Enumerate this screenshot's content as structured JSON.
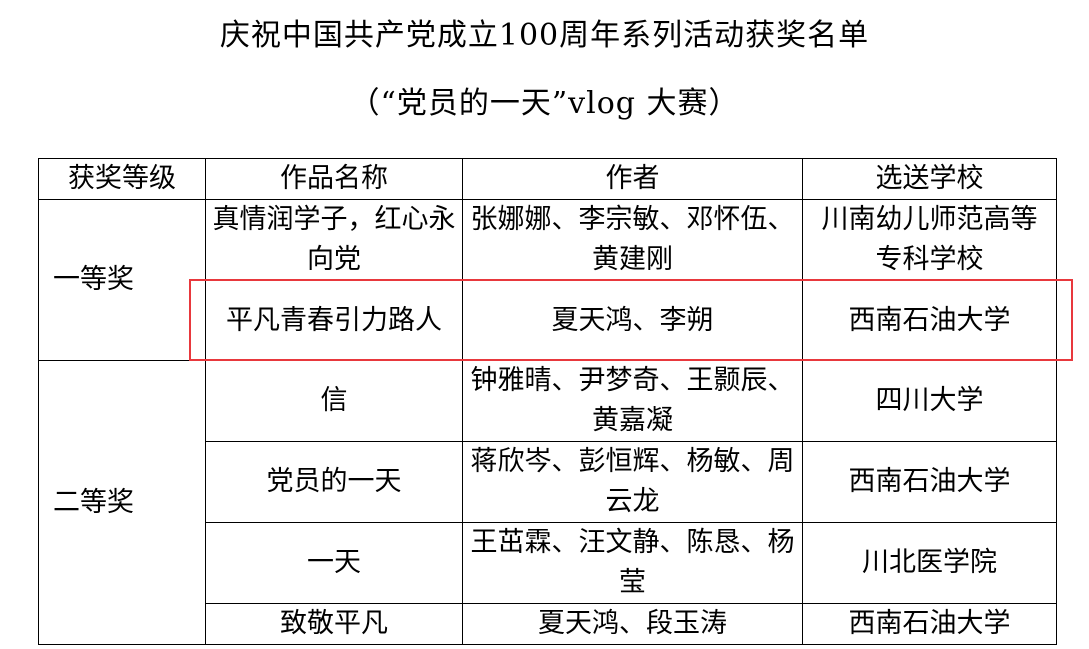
{
  "document": {
    "title": "庆祝中国共产党成立100周年系列活动获奖名单",
    "subtitle": "（“党员的一天”vlog 大赛）"
  },
  "table": {
    "headers": [
      "获奖等级",
      "作品名称",
      "作者",
      "选送学校"
    ],
    "groups": [
      {
        "award": "一等奖",
        "rows": [
          {
            "work": "真情润学子，红心永向党",
            "authors": "张娜娜、李宗敏、邓怀伍、黄建刚",
            "school": "川南幼儿师范高等专科学校"
          },
          {
            "work": "平凡青春引力路人",
            "authors": "夏天鸿、李朔",
            "school": "西南石油大学"
          }
        ]
      },
      {
        "award": "二等奖",
        "rows": [
          {
            "work": "信",
            "authors": "钟雅晴、尹梦奇、王颢辰、黄嘉凝",
            "school": "四川大学"
          },
          {
            "work": "党员的一天",
            "authors": "蒋欣岑、彭恒辉、杨敏、周云龙",
            "school": "西南石油大学"
          },
          {
            "work": "一天",
            "authors": "王茁霖、汪文静、陈恳、杨莹",
            "school": "川北医学院"
          },
          {
            "work": "致敬平凡",
            "authors": "夏天鸿、段玉涛",
            "school": "西南石油大学"
          }
        ]
      }
    ]
  },
  "highlight_color": "#e8383d"
}
